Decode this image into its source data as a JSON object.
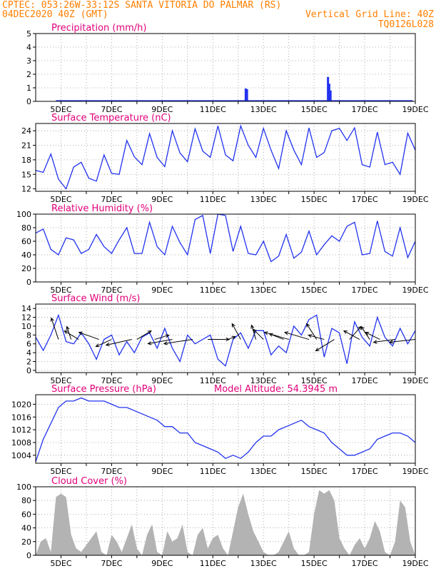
{
  "header": {
    "line1": "CPTEC:  053:26W-33:12S  SANTA VITORIA DO PALMAR (RS)",
    "line2": "04DEC2020 40Z (GMT)",
    "right2": "Vertical Grid Line: 40Z",
    "right3": "TQ0126L028"
  },
  "colors": {
    "header": "#ff7f00",
    "panel_title": "#e0007a",
    "series": "#2233ee",
    "cloud": "#b3b3b3",
    "grid": "#999999"
  },
  "x_axis": {
    "start_day": 4.0,
    "end_day": 19.0,
    "tick_labels": [
      "5DEC",
      "7DEC",
      "9DEC",
      "11DEC",
      "13DEC",
      "15DEC",
      "17DEC",
      "19DEC"
    ]
  },
  "chart_data": [
    {
      "type": "bar",
      "title": "Precipitation (mm/h)",
      "ylim": [
        0,
        5
      ],
      "yticks": [
        0,
        1,
        2,
        3,
        4,
        5
      ],
      "x": [
        12.3,
        12.35,
        15.55,
        15.6,
        15.65
      ],
      "values": [
        0.95,
        0.9,
        1.8,
        1.3,
        0.8
      ]
    },
    {
      "type": "line",
      "title": "Surface Temperature (nC)",
      "ylim": [
        11.5,
        25.5
      ],
      "yticks": [
        12,
        15,
        18,
        21,
        24
      ],
      "x": [
        4.0,
        4.3,
        4.6,
        4.9,
        5.2,
        5.5,
        5.8,
        6.1,
        6.4,
        6.7,
        7.0,
        7.3,
        7.6,
        7.9,
        8.2,
        8.5,
        8.8,
        9.1,
        9.4,
        9.7,
        10.0,
        10.3,
        10.6,
        10.9,
        11.2,
        11.5,
        11.8,
        12.1,
        12.4,
        12.7,
        13.0,
        13.3,
        13.6,
        13.9,
        14.2,
        14.5,
        14.8,
        15.1,
        15.4,
        15.7,
        16.0,
        16.3,
        16.6,
        16.9,
        17.2,
        17.5,
        17.8,
        18.1,
        18.4,
        18.7,
        19.0
      ],
      "values": [
        15.8,
        15.4,
        19.2,
        14.0,
        12.0,
        16.5,
        17.5,
        14.2,
        13.6,
        19.0,
        15.2,
        15.0,
        22.0,
        18.6,
        17.0,
        23.4,
        18.5,
        16.6,
        24.0,
        19.4,
        17.6,
        24.4,
        19.8,
        18.5,
        25.0,
        19.0,
        17.8,
        25.0,
        21.0,
        18.5,
        24.5,
        20.0,
        16.2,
        24.0,
        20.0,
        17.0,
        24.6,
        18.5,
        19.5,
        24.0,
        24.5,
        22.0,
        24.6,
        17.0,
        16.5,
        23.7,
        17.0,
        17.5,
        15.0,
        23.5,
        20.0
      ]
    },
    {
      "type": "line",
      "title": "Relative Humidity (%)",
      "ylim": [
        0,
        100
      ],
      "yticks": [
        0,
        20,
        40,
        60,
        80,
        100
      ],
      "x": [
        4.0,
        4.3,
        4.6,
        4.9,
        5.2,
        5.5,
        5.8,
        6.1,
        6.4,
        6.7,
        7.0,
        7.3,
        7.6,
        7.9,
        8.2,
        8.5,
        8.8,
        9.1,
        9.4,
        9.7,
        10.0,
        10.3,
        10.6,
        10.9,
        11.2,
        11.5,
        11.8,
        12.1,
        12.4,
        12.7,
        13.0,
        13.3,
        13.6,
        13.9,
        14.2,
        14.5,
        14.8,
        15.1,
        15.4,
        15.7,
        16.0,
        16.3,
        16.6,
        16.9,
        17.2,
        17.5,
        17.8,
        18.1,
        18.4,
        18.7,
        19.0
      ],
      "values": [
        72,
        78,
        48,
        40,
        65,
        62,
        42,
        48,
        70,
        52,
        42,
        62,
        80,
        42,
        42,
        88,
        52,
        40,
        82,
        58,
        40,
        92,
        98,
        42,
        100,
        98,
        45,
        82,
        42,
        40,
        60,
        30,
        38,
        70,
        35,
        44,
        75,
        40,
        55,
        68,
        60,
        82,
        88,
        40,
        42,
        90,
        45,
        38,
        80,
        36,
        60
      ]
    },
    {
      "type": "line",
      "title": "Surface Wind (m/s)",
      "ylim": [
        -0.5,
        15
      ],
      "yticks": [
        0,
        2,
        4,
        6,
        8,
        10,
        12,
        14
      ],
      "x": [
        4.0,
        4.3,
        4.6,
        4.9,
        5.2,
        5.5,
        5.8,
        6.1,
        6.4,
        6.7,
        7.0,
        7.3,
        7.6,
        7.9,
        8.2,
        8.5,
        8.8,
        9.1,
        9.4,
        9.7,
        10.0,
        10.3,
        10.6,
        10.9,
        11.2,
        11.5,
        11.8,
        12.1,
        12.4,
        12.7,
        13.0,
        13.3,
        13.6,
        13.9,
        14.2,
        14.5,
        14.8,
        15.1,
        15.4,
        15.7,
        16.0,
        16.3,
        16.6,
        16.9,
        17.2,
        17.5,
        17.8,
        18.1,
        18.4,
        18.7,
        19.0
      ],
      "values": [
        7.5,
        4.5,
        8.0,
        12.5,
        6.5,
        6.0,
        8.5,
        6.0,
        2.5,
        7.0,
        8.0,
        3.5,
        6.5,
        4.0,
        7.5,
        8.5,
        5.0,
        9.5,
        5.0,
        2.0,
        8.0,
        6.0,
        7.0,
        8.0,
        2.5,
        1.0,
        7.0,
        8.5,
        5.0,
        9.0,
        9.0,
        3.5,
        5.5,
        4.0,
        10.0,
        8.0,
        11.5,
        12.5,
        3.0,
        9.5,
        8.5,
        1.5,
        11.0,
        7.5,
        5.5,
        12.0,
        7.5,
        5.5,
        9.5,
        6.0,
        9.0
      ],
      "arrows": [
        {
          "x": 4.9,
          "dx": -10,
          "dy": -30
        },
        {
          "x": 5.4,
          "dx": -6,
          "dy": -18
        },
        {
          "x": 5.7,
          "dx": -20,
          "dy": -12
        },
        {
          "x": 6.5,
          "dx": -28,
          "dy": -10
        },
        {
          "x": 7.0,
          "dx": -22,
          "dy": 10
        },
        {
          "x": 7.8,
          "dx": -36,
          "dy": 8
        },
        {
          "x": 8.0,
          "dx": 20,
          "dy": -12
        },
        {
          "x": 8.7,
          "dx": 20,
          "dy": -6
        },
        {
          "x": 9.4,
          "dx": -34,
          "dy": 6
        },
        {
          "x": 10.2,
          "dx": -40,
          "dy": 6
        },
        {
          "x": 10.8,
          "dx": 30,
          "dy": 0
        },
        {
          "x": 11.6,
          "dx": 10,
          "dy": -4
        },
        {
          "x": 12.1,
          "dx": -12,
          "dy": -22
        },
        {
          "x": 12.7,
          "dx": -6,
          "dy": -20
        },
        {
          "x": 13.0,
          "dx": -14,
          "dy": -14
        },
        {
          "x": 13.8,
          "dx": -20,
          "dy": -8
        },
        {
          "x": 14.0,
          "dx": -34,
          "dy": -10
        },
        {
          "x": 14.8,
          "dx": -34,
          "dy": -10
        },
        {
          "x": 15.1,
          "dx": -14,
          "dy": -22
        },
        {
          "x": 15.4,
          "dx": -22,
          "dy": -6
        },
        {
          "x": 15.8,
          "dx": -26,
          "dy": 16
        },
        {
          "x": 16.4,
          "dx": 16,
          "dy": -18
        },
        {
          "x": 16.8,
          "dx": -22,
          "dy": -12
        },
        {
          "x": 17.2,
          "dx": -12,
          "dy": -18
        },
        {
          "x": 17.6,
          "dx": -20,
          "dy": -10
        },
        {
          "x": 18.2,
          "dx": -30,
          "dy": 4
        },
        {
          "x": 19.0,
          "dx": -36,
          "dy": 4
        }
      ]
    },
    {
      "type": "line",
      "title": "Surface Pressure (hPa)",
      "annotation": "Model Altitude: 54.3945 m",
      "ylim": [
        1001.5,
        1023
      ],
      "yticks": [
        1004,
        1008,
        1012,
        1016,
        1020
      ],
      "x": [
        4.0,
        4.3,
        4.6,
        4.9,
        5.2,
        5.5,
        5.8,
        6.1,
        6.4,
        6.7,
        7.0,
        7.3,
        7.6,
        7.9,
        8.2,
        8.5,
        8.8,
        9.1,
        9.4,
        9.7,
        10.0,
        10.3,
        10.6,
        10.9,
        11.2,
        11.5,
        11.8,
        12.1,
        12.4,
        12.7,
        13.0,
        13.3,
        13.6,
        13.9,
        14.2,
        14.5,
        14.8,
        15.1,
        15.4,
        15.7,
        16.0,
        16.3,
        16.6,
        16.9,
        17.2,
        17.5,
        17.8,
        18.1,
        18.4,
        18.7,
        19.0
      ],
      "values": [
        1002,
        1009,
        1014,
        1019,
        1021,
        1021,
        1022,
        1021,
        1021,
        1021,
        1020,
        1019,
        1019,
        1018,
        1017,
        1016,
        1015,
        1013,
        1013,
        1011,
        1011,
        1008,
        1007,
        1006,
        1005,
        1003,
        1004,
        1003,
        1005,
        1008,
        1010,
        1010,
        1012,
        1013,
        1014,
        1015,
        1013,
        1012,
        1011,
        1008,
        1006,
        1004,
        1004,
        1005,
        1006,
        1009,
        1010,
        1011,
        1011,
        1010,
        1008
      ]
    },
    {
      "type": "area",
      "title": "Cloud Cover (%)",
      "ylim": [
        0,
        100
      ],
      "yticks": [
        0,
        20,
        40,
        60,
        80,
        100
      ],
      "x": [
        4.0,
        4.2,
        4.4,
        4.6,
        4.8,
        5.0,
        5.2,
        5.4,
        5.6,
        5.8,
        6.0,
        6.2,
        6.4,
        6.6,
        6.8,
        7.0,
        7.2,
        7.4,
        7.6,
        7.8,
        8.0,
        8.2,
        8.4,
        8.6,
        8.8,
        9.0,
        9.2,
        9.4,
        9.6,
        9.8,
        10.0,
        10.2,
        10.4,
        10.6,
        10.8,
        11.0,
        11.2,
        11.4,
        11.6,
        11.8,
        12.0,
        12.2,
        12.4,
        12.6,
        12.8,
        13.0,
        13.2,
        13.4,
        13.6,
        13.8,
        14.0,
        14.2,
        14.4,
        14.6,
        14.8,
        15.0,
        15.2,
        15.4,
        15.6,
        15.8,
        16.0,
        16.2,
        16.4,
        16.6,
        16.8,
        17.0,
        17.2,
        17.4,
        17.6,
        17.8,
        18.0,
        18.2,
        18.4,
        18.6,
        18.8,
        19.0
      ],
      "values": [
        0,
        20,
        25,
        5,
        85,
        90,
        85,
        30,
        10,
        5,
        15,
        25,
        35,
        5,
        0,
        30,
        20,
        5,
        25,
        45,
        10,
        0,
        30,
        45,
        5,
        0,
        35,
        20,
        25,
        45,
        5,
        0,
        30,
        40,
        10,
        25,
        30,
        10,
        0,
        35,
        70,
        90,
        60,
        35,
        20,
        5,
        0,
        0,
        5,
        20,
        35,
        10,
        0,
        0,
        5,
        60,
        95,
        90,
        95,
        80,
        25,
        10,
        0,
        15,
        25,
        10,
        25,
        50,
        35,
        5,
        0,
        20,
        80,
        70,
        20,
        0
      ]
    }
  ]
}
